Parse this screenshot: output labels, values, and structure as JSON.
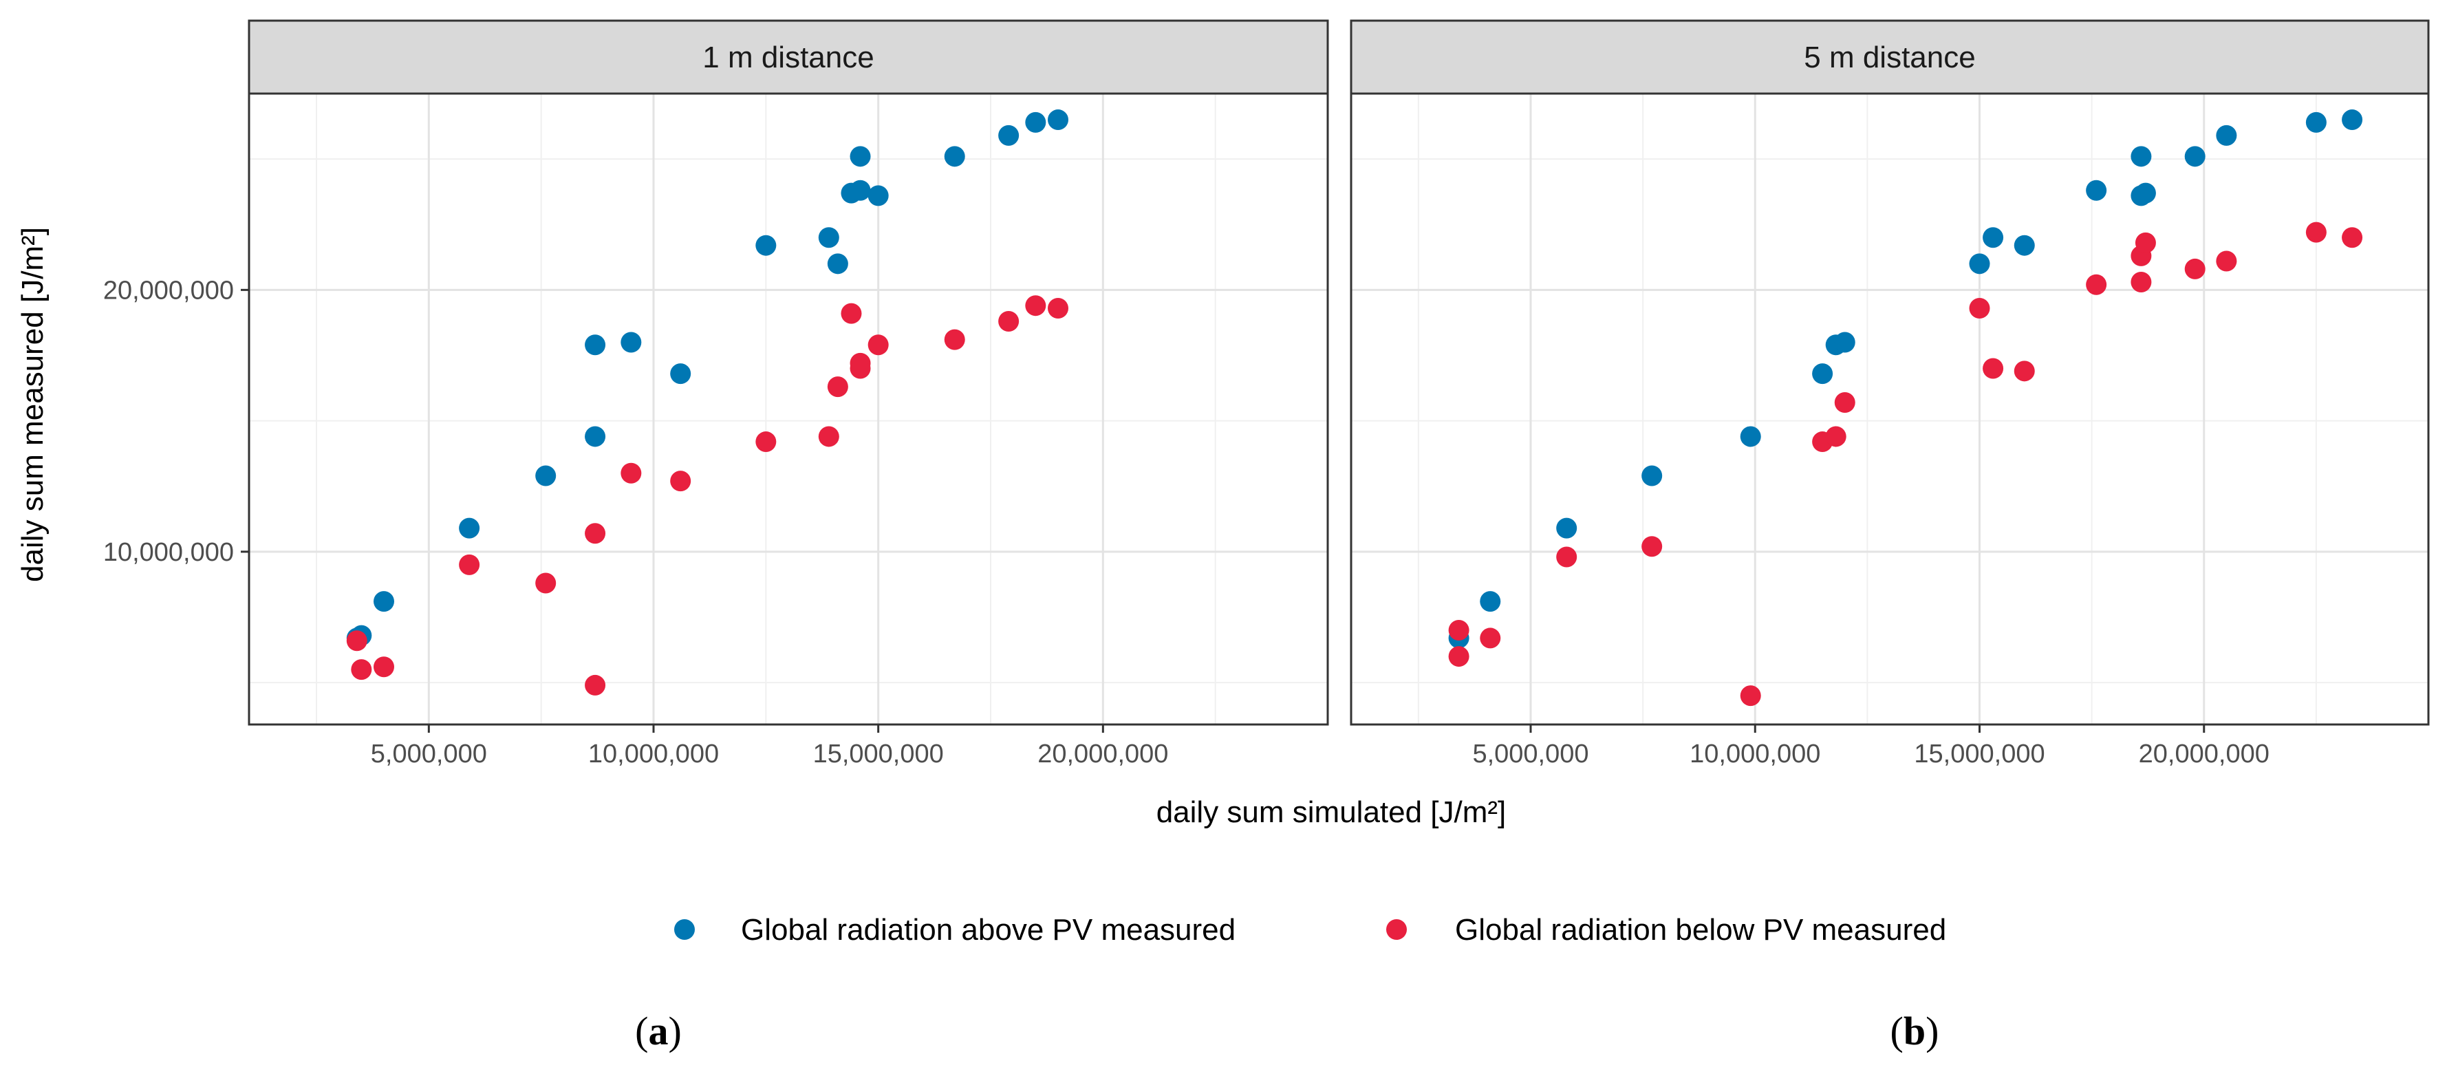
{
  "chart_data": {
    "type": "scatter",
    "xlabel": "daily sum simulated [J/m²]",
    "ylabel": "daily sum measured [J/m²]",
    "xlim": [
      1000000,
      25000000
    ],
    "ylim": [
      3400000,
      27500000
    ],
    "x_ticks": [
      5000000,
      10000000,
      15000000,
      20000000
    ],
    "x_tick_labels": [
      "5,000,000",
      "10,000,000",
      "15,000,000",
      "20,000,000"
    ],
    "y_ticks": [
      10000000,
      20000000
    ],
    "y_tick_labels": [
      "10,000,000",
      "20,000,000"
    ],
    "grid": true,
    "legend_position": "bottom",
    "legend": [
      {
        "label": "Global radiation above PV measured",
        "color": "#0077b3"
      },
      {
        "label": "Global radiation below PV measured",
        "color": "#e8203f"
      }
    ],
    "panels": [
      {
        "strip": "1 m distance",
        "sub_open": "(",
        "sub_letter": "a",
        "sub_close": ")",
        "series": [
          {
            "name": "Global radiation above PV measured",
            "color": "#0077b3",
            "points": [
              [
                3400000,
                6700000
              ],
              [
                3500000,
                6800000
              ],
              [
                4000000,
                8100000
              ],
              [
                5900000,
                10900000
              ],
              [
                7600000,
                12900000
              ],
              [
                8700000,
                14400000
              ],
              [
                8700000,
                17900000
              ],
              [
                9500000,
                18000000
              ],
              [
                10600000,
                16800000
              ],
              [
                12500000,
                21700000
              ],
              [
                13900000,
                22000000
              ],
              [
                14100000,
                21000000
              ],
              [
                14400000,
                23700000
              ],
              [
                14600000,
                23800000
              ],
              [
                14600000,
                25100000
              ],
              [
                15000000,
                23600000
              ],
              [
                16700000,
                25100000
              ],
              [
                17900000,
                25900000
              ],
              [
                18500000,
                26400000
              ],
              [
                19000000,
                26500000
              ]
            ]
          },
          {
            "name": "Global radiation below PV measured",
            "color": "#e8203f",
            "points": [
              [
                3400000,
                6600000
              ],
              [
                3500000,
                5500000
              ],
              [
                4000000,
                5600000
              ],
              [
                5900000,
                9500000
              ],
              [
                7600000,
                8800000
              ],
              [
                8700000,
                10700000
              ],
              [
                8700000,
                4900000
              ],
              [
                9500000,
                13000000
              ],
              [
                10600000,
                12700000
              ],
              [
                12500000,
                14200000
              ],
              [
                13900000,
                14400000
              ],
              [
                14100000,
                16300000
              ],
              [
                14400000,
                19100000
              ],
              [
                14600000,
                17000000
              ],
              [
                14600000,
                17200000
              ],
              [
                15000000,
                17900000
              ],
              [
                16700000,
                18100000
              ],
              [
                17900000,
                18800000
              ],
              [
                18500000,
                19400000
              ],
              [
                19000000,
                19300000
              ]
            ]
          }
        ]
      },
      {
        "strip": "5 m distance",
        "sub_open": "(",
        "sub_letter": "b",
        "sub_close": ")",
        "series": [
          {
            "name": "Global radiation above PV measured",
            "color": "#0077b3",
            "points": [
              [
                3400000,
                6700000
              ],
              [
                4100000,
                8100000
              ],
              [
                5800000,
                10900000
              ],
              [
                7700000,
                12900000
              ],
              [
                9900000,
                14400000
              ],
              [
                11500000,
                16800000
              ],
              [
                11800000,
                17900000
              ],
              [
                12000000,
                18000000
              ],
              [
                15000000,
                21000000
              ],
              [
                15300000,
                22000000
              ],
              [
                16000000,
                21700000
              ],
              [
                17600000,
                23800000
              ],
              [
                18600000,
                23600000
              ],
              [
                18700000,
                23700000
              ],
              [
                18600000,
                25100000
              ],
              [
                19800000,
                25100000
              ],
              [
                20500000,
                25900000
              ],
              [
                22500000,
                26400000
              ],
              [
                23300000,
                26500000
              ]
            ]
          },
          {
            "name": "Global radiation below PV measured",
            "color": "#e8203f",
            "points": [
              [
                3400000,
                7000000
              ],
              [
                3400000,
                6000000
              ],
              [
                4100000,
                6700000
              ],
              [
                5800000,
                9800000
              ],
              [
                7700000,
                10200000
              ],
              [
                9900000,
                4500000
              ],
              [
                11500000,
                14200000
              ],
              [
                11800000,
                14400000
              ],
              [
                12000000,
                15700000
              ],
              [
                15000000,
                19300000
              ],
              [
                15300000,
                17000000
              ],
              [
                16000000,
                16900000
              ],
              [
                17600000,
                20200000
              ],
              [
                18600000,
                20300000
              ],
              [
                18600000,
                21300000
              ],
              [
                18700000,
                21800000
              ],
              [
                19800000,
                20800000
              ],
              [
                20500000,
                21100000
              ],
              [
                22500000,
                22200000
              ],
              [
                23300000,
                22000000
              ]
            ]
          }
        ]
      }
    ]
  }
}
